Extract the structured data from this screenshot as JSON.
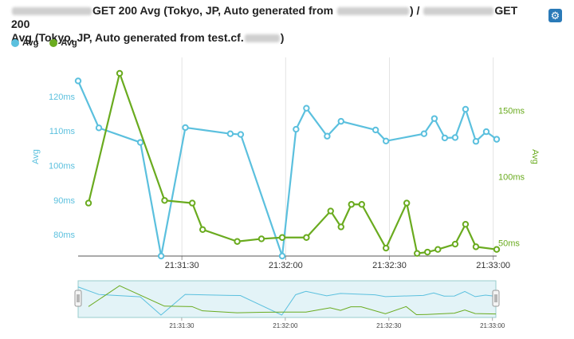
{
  "header": {
    "title_part1": "GET 200 Avg (Tokyo, JP, Auto generated from",
    "title_part2": ") /",
    "title_part3": "GET 200",
    "title_line2a": "Avg (Tokyo, JP, Auto generated from test.cf.",
    "title_line2b": ")",
    "settings_icon": "gear-icon"
  },
  "legend": [
    {
      "label": "Avg",
      "color": "#5bc0de"
    },
    {
      "label": "Avg",
      "color": "#6aab1f"
    }
  ],
  "colors": {
    "left": "#5bc0de",
    "right": "#6aab1f",
    "nav_fill": "#e3f3f7"
  },
  "chart_data": {
    "type": "line",
    "x_ticks": [
      "21:31:30",
      "21:32:00",
      "21:32:30",
      "21:33:00"
    ],
    "y_left": {
      "label": "Avg",
      "ticks": [
        "80ms",
        "90ms",
        "100ms",
        "110ms",
        "120ms"
      ],
      "tick_values": [
        80,
        90,
        100,
        110,
        120
      ],
      "range": [
        73.8,
        131.3
      ]
    },
    "y_right": {
      "label": "Avg",
      "ticks": [
        "50ms",
        "100ms",
        "150ms"
      ],
      "tick_values": [
        50,
        100,
        150
      ],
      "range": [
        40,
        190
      ]
    },
    "grid": "vertical",
    "series": [
      {
        "name": "Avg",
        "axis": "left",
        "x": [
          "21:31:00",
          "21:31:06",
          "21:31:18",
          "21:31:24",
          "21:31:31",
          "21:31:44",
          "21:31:47",
          "21:31:59",
          "21:32:03",
          "21:32:06",
          "21:32:12",
          "21:32:16",
          "21:32:26",
          "21:32:29",
          "21:32:40",
          "21:32:43",
          "21:32:46",
          "21:32:49",
          "21:32:52",
          "21:32:55",
          "21:32:58",
          "21:33:01"
        ],
        "y": [
          124.5,
          110.9,
          106.7,
          73.8,
          111.0,
          109.2,
          109.0,
          73.8,
          110.5,
          116.6,
          108.5,
          112.8,
          110.3,
          107.1,
          109.2,
          113.6,
          108.0,
          108.1,
          116.3,
          107.0,
          109.8,
          107.6
        ]
      },
      {
        "name": "Avg",
        "axis": "right",
        "x": [
          "21:31:03",
          "21:31:12",
          "21:31:25",
          "21:31:33",
          "21:31:36",
          "21:31:46",
          "21:31:53",
          "21:31:59",
          "21:32:06",
          "21:32:13",
          "21:32:16",
          "21:32:19",
          "21:32:22",
          "21:32:29",
          "21:32:35",
          "21:32:38",
          "21:32:41",
          "21:32:44",
          "21:32:49",
          "21:32:52",
          "21:32:55",
          "21:33:01"
        ],
        "y": [
          80,
          178,
          82,
          80,
          60,
          51,
          53,
          54,
          54,
          74,
          62,
          79,
          79,
          46,
          80,
          42,
          43,
          45,
          49,
          64,
          47,
          45
        ]
      }
    ]
  }
}
